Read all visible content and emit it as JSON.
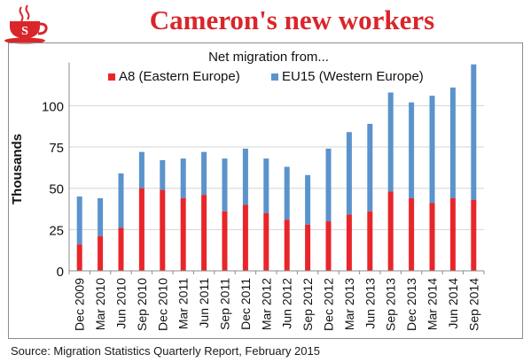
{
  "header": {
    "title": "Cameron's new workers",
    "logo_letter": "S",
    "logo_icon": "teacup-icon"
  },
  "source": "Source: Migration Statistics Quarterly Report, February 2015",
  "colors": {
    "a8": "#e8262a",
    "eu15": "#5b93cc",
    "title": "#d9262b",
    "grid": "#d4d4d4",
    "axis": "#8c8c8c"
  },
  "chart_data": {
    "type": "bar",
    "stacked": true,
    "title": "Net migration from...",
    "xlabel": "",
    "ylabel": "Thousands",
    "ylim": [
      0,
      125
    ],
    "yticks": [
      0,
      25,
      50,
      75,
      100
    ],
    "grid": true,
    "legend_position": "top",
    "categories": [
      "Dec 2009",
      "Mar 2010",
      "Jun 2010",
      "Sep 2010",
      "Dec 2010",
      "Mar 2011",
      "Jun 2011",
      "Sep 2011",
      "Dec 2011",
      "Mar 2012",
      "Jun 2012",
      "Sep 2012",
      "Dec 2012",
      "Mar 2013",
      "Jun 2013",
      "Sep 2013",
      "Dec 2013",
      "Mar 2014",
      "Jun 2014",
      "Sep 2014"
    ],
    "series": [
      {
        "name": "A8 (Eastern Europe)",
        "color": "#e8262a",
        "values": [
          16,
          21,
          26,
          50,
          49,
          44,
          46,
          36,
          40,
          35,
          31,
          28,
          30,
          34,
          36,
          48,
          44,
          41,
          44,
          43
        ]
      },
      {
        "name": "EU15 (Western Europe)",
        "color": "#5b93cc",
        "values": [
          29,
          23,
          33,
          22,
          18,
          24,
          26,
          32,
          34,
          33,
          32,
          30,
          44,
          50,
          53,
          60,
          58,
          65,
          67,
          82
        ]
      }
    ]
  }
}
